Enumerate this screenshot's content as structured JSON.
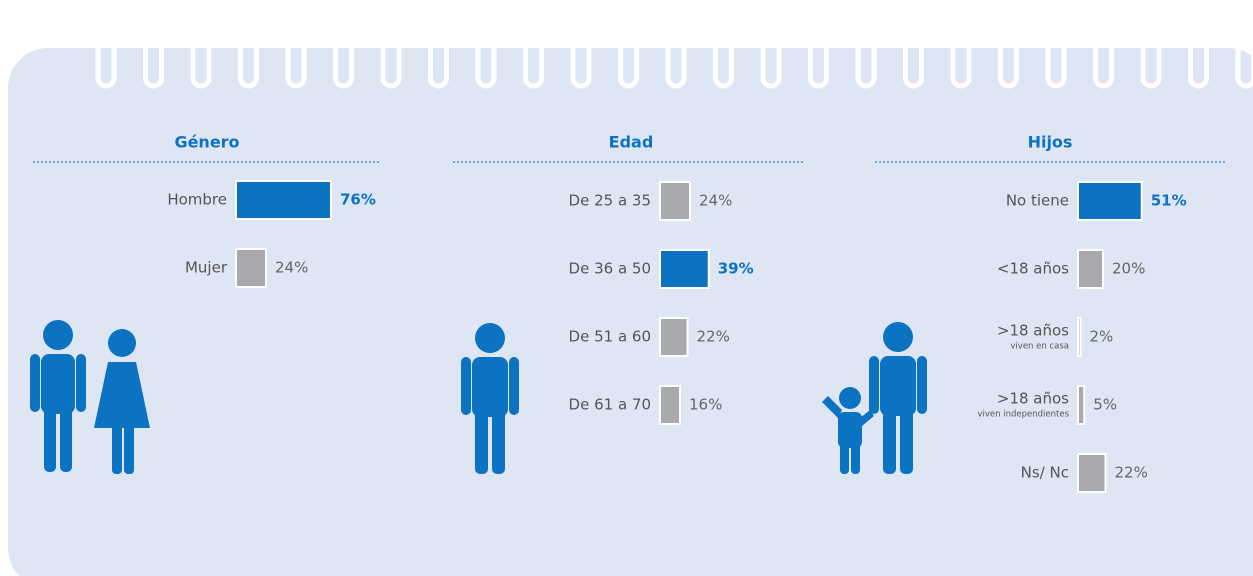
{
  "chart_data": [
    {
      "type": "bar",
      "title": "Género",
      "categories": [
        "Hombre",
        "Mujer"
      ],
      "values": [
        76,
        24
      ],
      "value_labels": [
        "76%",
        "24%"
      ],
      "colors": [
        "#0c72c2",
        "#a7a9ac"
      ],
      "highlight_color": "#0c72c2",
      "xlim": [
        0,
        100
      ]
    },
    {
      "type": "bar",
      "title": "Edad",
      "categories": [
        "De 25 a 35",
        "De 36 a 50",
        "De 51 a 60",
        "De 61 a 70"
      ],
      "values": [
        24,
        39,
        22,
        16
      ],
      "value_labels": [
        "24%",
        "39%",
        "22%",
        "16%"
      ],
      "colors": [
        "#a7a9ac",
        "#0c72c2",
        "#a7a9ac",
        "#a7a9ac"
      ],
      "highlight_color": "#0c72c2",
      "xlim": [
        0,
        100
      ]
    },
    {
      "type": "bar",
      "title": "Hijos",
      "categories": [
        "No tiene",
        "<18 años",
        ">18 años",
        ">18 años",
        "Ns/ Nc"
      ],
      "category_notes": [
        null,
        null,
        "viven en casa",
        "viven independientes",
        null
      ],
      "values": [
        51,
        20,
        2,
        5,
        22
      ],
      "value_labels": [
        "51%",
        "20%",
        "2%",
        "5%",
        "22%"
      ],
      "colors": [
        "#0c72c2",
        "#a7a9ac",
        "#a7a9ac",
        "#a7a9ac",
        "#a7a9ac"
      ],
      "highlight_color": "#0c72c2",
      "xlim": [
        0,
        100
      ]
    }
  ]
}
